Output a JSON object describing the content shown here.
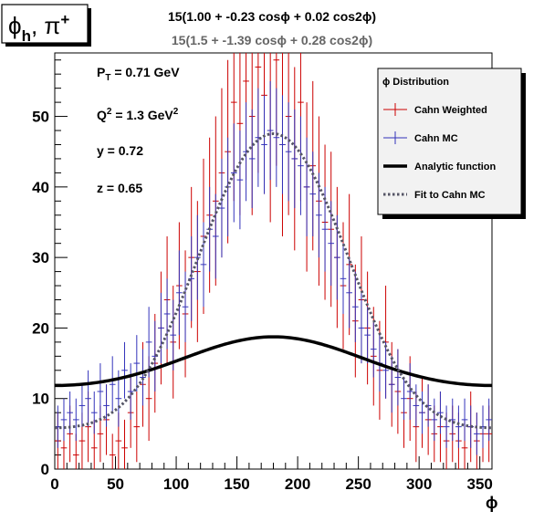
{
  "chart_data": {
    "type": "scatter",
    "title_box": "ϕ_h, π^+",
    "fit_formula_1": "15(1.00 + -0.23 cosϕ + 0.02 cos2ϕ)",
    "fit_formula_2": "15(1.5 + -1.39 cosϕ + 0.28 cos2ϕ)",
    "xlabel": "ϕ",
    "ylabel": "",
    "xlim": [
      0,
      360
    ],
    "ylim": [
      0,
      59
    ],
    "x_ticks": [
      0,
      50,
      100,
      150,
      200,
      250,
      300,
      350
    ],
    "y_ticks": [
      0,
      10,
      20,
      30,
      40,
      50
    ],
    "grid": false,
    "kinematics": [
      {
        "name": "P",
        "sub": "T",
        "sup": "",
        "value": " = 0.71 GeV"
      },
      {
        "name": "Q",
        "sub": "",
        "sup": "2",
        "value": " = 1.3 GeV"
      },
      {
        "name": "y",
        "sub": "",
        "sup": "",
        "value": " = 0.72"
      },
      {
        "name": "z",
        "sub": "",
        "sup": "",
        "value": " = 0.65"
      }
    ],
    "kinematics_q2_unit_sup": "2",
    "legend": {
      "placement": "top-right",
      "title": "ϕ Distribution",
      "entries": [
        {
          "label": "Cahn Weighted",
          "style": "red-errorbar"
        },
        {
          "label": "Cahn MC",
          "style": "blue-errorbar"
        },
        {
          "label": "Analytic function",
          "style": "black-thick"
        },
        {
          "label": "Fit to Cahn MC",
          "style": "gray-dotted"
        }
      ]
    },
    "colors": {
      "red": "#cc0000",
      "blue": "#3333bb",
      "black": "#000000",
      "gray": "#555566"
    },
    "analytic_function": {
      "norm": 15,
      "a0": 1.0,
      "a1": -0.23,
      "a2": 0.02
    },
    "fit_function": {
      "norm": 15,
      "a0": 1.5,
      "a1": -1.39,
      "a2": 0.28
    },
    "series": [
      {
        "name": "Cahn Weighted",
        "bin_width": 5,
        "x": [
          2.5,
          7.5,
          12.5,
          17.5,
          22.5,
          27.5,
          32.5,
          37.5,
          42.5,
          47.5,
          52.5,
          57.5,
          62.5,
          67.5,
          72.5,
          77.5,
          82.5,
          87.5,
          92.5,
          97.5,
          102.5,
          107.5,
          112.5,
          117.5,
          122.5,
          127.5,
          132.5,
          137.5,
          142.5,
          147.5,
          152.5,
          157.5,
          162.5,
          167.5,
          172.5,
          177.5,
          182.5,
          187.5,
          192.5,
          197.5,
          202.5,
          207.5,
          212.5,
          217.5,
          222.5,
          227.5,
          232.5,
          237.5,
          242.5,
          247.5,
          252.5,
          257.5,
          262.5,
          267.5,
          272.5,
          277.5,
          282.5,
          287.5,
          292.5,
          297.5,
          302.5,
          307.5,
          312.5,
          317.5,
          322.5,
          327.5,
          332.5,
          337.5,
          342.5,
          347.5,
          352.5,
          357.5
        ],
        "y": [
          4,
          3,
          5,
          2,
          4,
          6,
          3,
          5,
          7,
          2,
          4,
          3,
          8,
          6,
          12,
          10,
          15,
          20,
          24,
          18,
          26,
          22,
          30,
          28,
          33,
          36,
          38,
          42,
          45,
          52,
          49,
          55,
          50,
          57,
          53,
          48,
          58,
          46,
          50,
          44,
          52,
          40,
          43,
          38,
          35,
          34,
          30,
          26,
          29,
          21,
          24,
          20,
          16,
          14,
          18,
          12,
          11,
          8,
          10,
          6,
          8,
          7,
          5,
          6,
          4,
          5,
          4,
          3,
          6,
          4,
          5,
          5
        ],
        "err": [
          4,
          4,
          4,
          3,
          4,
          5,
          4,
          4,
          5,
          3,
          4,
          4,
          5,
          5,
          6,
          6,
          7,
          8,
          9,
          8,
          9,
          9,
          10,
          10,
          11,
          11,
          12,
          12,
          13,
          14,
          13,
          14,
          14,
          15,
          14,
          13,
          15,
          13,
          14,
          13,
          14,
          12,
          12,
          12,
          11,
          11,
          10,
          9,
          10,
          8,
          9,
          8,
          7,
          7,
          8,
          6,
          6,
          5,
          6,
          5,
          5,
          5,
          4,
          5,
          4,
          4,
          4,
          4,
          5,
          4,
          4,
          4
        ]
      },
      {
        "name": "Cahn MC",
        "bin_width": 5,
        "x": [
          2.5,
          7.5,
          12.5,
          17.5,
          22.5,
          27.5,
          32.5,
          37.5,
          42.5,
          47.5,
          52.5,
          57.5,
          62.5,
          67.5,
          72.5,
          77.5,
          82.5,
          87.5,
          92.5,
          97.5,
          102.5,
          107.5,
          112.5,
          117.5,
          122.5,
          127.5,
          132.5,
          137.5,
          142.5,
          147.5,
          152.5,
          157.5,
          162.5,
          167.5,
          172.5,
          177.5,
          182.5,
          187.5,
          192.5,
          197.5,
          202.5,
          207.5,
          212.5,
          217.5,
          222.5,
          227.5,
          232.5,
          237.5,
          242.5,
          247.5,
          252.5,
          257.5,
          262.5,
          267.5,
          272.5,
          277.5,
          282.5,
          287.5,
          292.5,
          297.5,
          302.5,
          307.5,
          312.5,
          317.5,
          322.5,
          327.5,
          332.5,
          337.5,
          342.5,
          347.5,
          352.5,
          357.5
        ],
        "y": [
          6,
          7,
          8,
          7,
          9,
          10,
          8,
          11,
          9,
          12,
          10,
          14,
          11,
          15,
          13,
          18,
          16,
          20,
          22,
          19,
          25,
          23,
          27,
          30,
          29,
          34,
          33,
          37,
          40,
          42,
          41,
          45,
          44,
          47,
          46,
          48,
          47,
          46,
          45,
          44,
          43,
          40,
          39,
          36,
          34,
          32,
          30,
          27,
          25,
          23,
          20,
          19,
          17,
          15,
          14,
          12,
          13,
          10,
          11,
          9,
          8,
          9,
          7,
          8,
          6,
          7,
          6,
          7,
          6,
          5,
          6,
          7
        ],
        "err": [
          3,
          3,
          3,
          3,
          3,
          4,
          3,
          4,
          3,
          4,
          4,
          4,
          4,
          4,
          4,
          5,
          5,
          5,
          5,
          5,
          6,
          5,
          6,
          6,
          6,
          6,
          6,
          7,
          7,
          7,
          7,
          7,
          7,
          7,
          7,
          7,
          7,
          7,
          7,
          7,
          7,
          7,
          6,
          6,
          6,
          6,
          6,
          5,
          5,
          5,
          5,
          4,
          4,
          4,
          4,
          4,
          4,
          3,
          4,
          3,
          3,
          3,
          3,
          3,
          3,
          3,
          3,
          3,
          3,
          3,
          3,
          3
        ]
      }
    ]
  }
}
